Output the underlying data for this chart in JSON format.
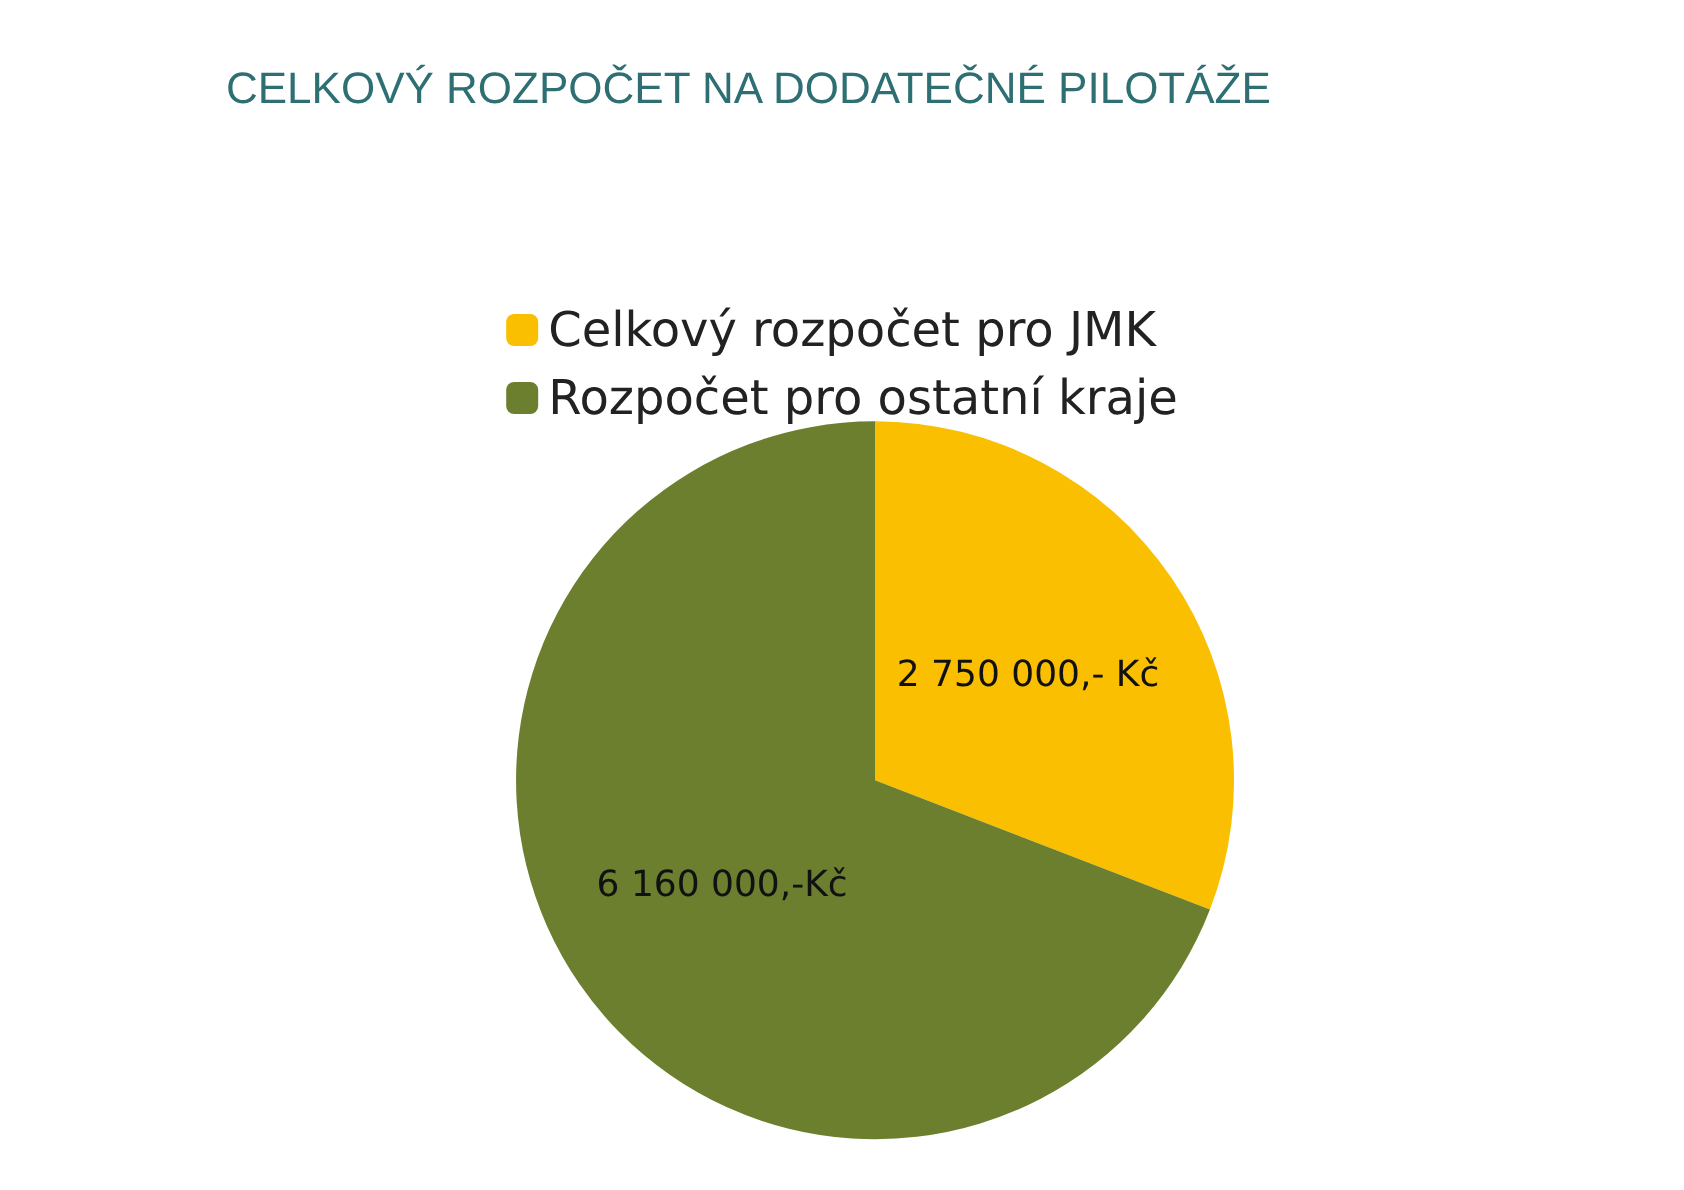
{
  "chart_data": {
    "type": "pie",
    "title": "CELKOVÝ ROZPOČET NA DODATEČNÉ PILOTÁŽE",
    "categories": [
      "Celkový rozpočet pro JMK",
      "Rozpočet pro ostatní kraje"
    ],
    "values": [
      2750000,
      6160000
    ],
    "colors": [
      "#f9bf00",
      "#6b7f2f"
    ],
    "value_labels": [
      "2 750 000,- Kč",
      "6 160 000,-Kč"
    ],
    "legend": "top"
  }
}
